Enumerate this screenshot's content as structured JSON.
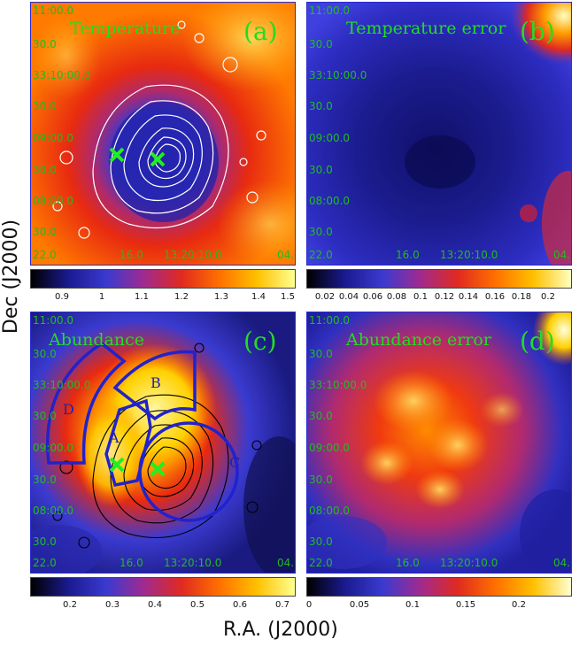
{
  "panels": {
    "a": {
      "title": "Temperature",
      "letter": "(a)"
    },
    "b": {
      "title": "Temperature error",
      "letter": "(b)"
    },
    "c": {
      "title": "Abundance",
      "letter": "(c)",
      "regions": [
        "A",
        "B",
        "C",
        "D"
      ]
    },
    "d": {
      "title": "Abundance error",
      "letter": "(d)"
    }
  },
  "dec_ticks": [
    "11:00.0",
    "30.0",
    "33:10:00.0",
    "30.0",
    "09:00.0",
    "30.0",
    "08:00.0",
    "30.0"
  ],
  "ra_ticks": [
    "22.0",
    "16.0",
    "13:20:10.0",
    "04.0"
  ],
  "colorbars": {
    "a": [
      "0.9",
      "1",
      "1.1",
      "1.2",
      "1.3",
      "1.4",
      "1.5"
    ],
    "b": [
      "0.02",
      "0.04",
      "0.06",
      "0.08",
      "0.1",
      "0.12",
      "0.14",
      "0.16",
      "0.18",
      "0.2"
    ],
    "c": [
      "0.2",
      "0.3",
      "0.4",
      "0.5",
      "0.6",
      "0.7"
    ],
    "d": [
      "0",
      "0.05",
      "0.1",
      "0.15",
      "0.2"
    ]
  },
  "axes": {
    "ylabel": "Dec (J2000)",
    "xlabel": "R.A. (J2000)"
  },
  "colors": {
    "marker": "#22ee22",
    "title_text": "#22dd22",
    "frame": "#2a2ad0"
  }
}
